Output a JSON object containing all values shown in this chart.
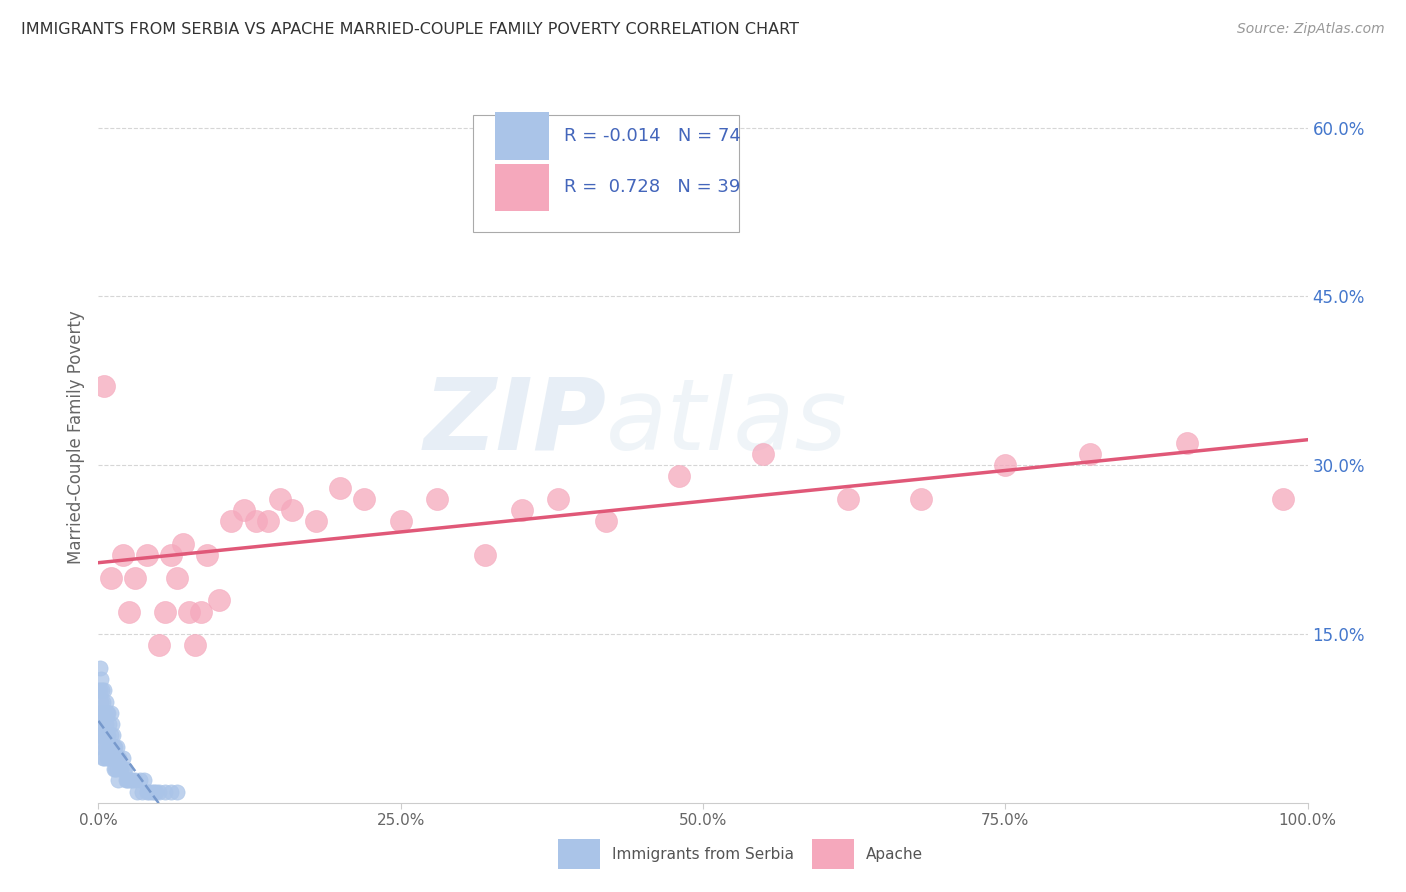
{
  "title": "IMMIGRANTS FROM SERBIA VS APACHE MARRIED-COUPLE FAMILY POVERTY CORRELATION CHART",
  "source": "Source: ZipAtlas.com",
  "ylabel": "Married-Couple Family Poverty",
  "legend_label1": "Immigrants from Serbia",
  "legend_label2": "Apache",
  "r1": "-0.014",
  "n1": "74",
  "r2": "0.728",
  "n2": "39",
  "serbia_color": "#aac4e8",
  "apache_color": "#f5a8bc",
  "serbia_line_color": "#7799cc",
  "apache_line_color": "#e05878",
  "serbia_x": [
    0.0,
    0.0,
    0.0,
    0.001,
    0.001,
    0.001,
    0.001,
    0.002,
    0.002,
    0.002,
    0.002,
    0.003,
    0.003,
    0.003,
    0.003,
    0.004,
    0.004,
    0.004,
    0.004,
    0.005,
    0.005,
    0.005,
    0.005,
    0.006,
    0.006,
    0.006,
    0.007,
    0.007,
    0.007,
    0.008,
    0.008,
    0.008,
    0.009,
    0.009,
    0.01,
    0.01,
    0.01,
    0.011,
    0.011,
    0.012,
    0.012,
    0.013,
    0.013,
    0.014,
    0.014,
    0.015,
    0.015,
    0.016,
    0.016,
    0.017,
    0.018,
    0.019,
    0.02,
    0.021,
    0.022,
    0.023,
    0.024,
    0.025,
    0.027,
    0.028,
    0.03,
    0.032,
    0.034,
    0.036,
    0.038,
    0.04,
    0.042,
    0.044,
    0.046,
    0.048,
    0.05,
    0.055,
    0.06,
    0.065
  ],
  "serbia_y": [
    0.1,
    0.08,
    0.06,
    0.12,
    0.1,
    0.08,
    0.06,
    0.11,
    0.09,
    0.07,
    0.05,
    0.1,
    0.08,
    0.07,
    0.05,
    0.09,
    0.08,
    0.06,
    0.04,
    0.1,
    0.08,
    0.06,
    0.04,
    0.09,
    0.07,
    0.05,
    0.08,
    0.06,
    0.04,
    0.08,
    0.06,
    0.04,
    0.07,
    0.05,
    0.08,
    0.06,
    0.04,
    0.07,
    0.05,
    0.06,
    0.04,
    0.05,
    0.03,
    0.05,
    0.03,
    0.05,
    0.03,
    0.04,
    0.02,
    0.04,
    0.03,
    0.03,
    0.04,
    0.03,
    0.03,
    0.02,
    0.02,
    0.02,
    0.02,
    0.02,
    0.02,
    0.01,
    0.02,
    0.01,
    0.02,
    0.01,
    0.01,
    0.01,
    0.01,
    0.01,
    0.01,
    0.01,
    0.01,
    0.01
  ],
  "apache_x": [
    0.005,
    0.01,
    0.02,
    0.025,
    0.03,
    0.04,
    0.05,
    0.055,
    0.06,
    0.065,
    0.07,
    0.075,
    0.08,
    0.085,
    0.09,
    0.1,
    0.11,
    0.12,
    0.13,
    0.14,
    0.15,
    0.16,
    0.18,
    0.2,
    0.22,
    0.25,
    0.28,
    0.32,
    0.35,
    0.38,
    0.42,
    0.48,
    0.55,
    0.62,
    0.68,
    0.75,
    0.82,
    0.9,
    0.98
  ],
  "apache_y": [
    0.37,
    0.2,
    0.22,
    0.17,
    0.2,
    0.22,
    0.14,
    0.17,
    0.22,
    0.2,
    0.23,
    0.17,
    0.14,
    0.17,
    0.22,
    0.18,
    0.25,
    0.26,
    0.25,
    0.25,
    0.27,
    0.26,
    0.25,
    0.28,
    0.27,
    0.25,
    0.27,
    0.22,
    0.26,
    0.27,
    0.25,
    0.29,
    0.31,
    0.27,
    0.27,
    0.3,
    0.31,
    0.32,
    0.27
  ],
  "xlim": [
    0.0,
    1.0
  ],
  "ylim": [
    0.0,
    0.65
  ],
  "ytick_vals": [
    0.15,
    0.3,
    0.45,
    0.6
  ],
  "ytick_labels": [
    "15.0%",
    "30.0%",
    "45.0%",
    "60.0%"
  ],
  "xtick_vals": [
    0.0,
    0.25,
    0.5,
    0.75,
    1.0
  ],
  "xtick_labels": [
    "0.0%",
    "25.0%",
    "50.0%",
    "75.0%",
    "100.0%"
  ],
  "background_color": "#ffffff",
  "watermark_zip": "ZIP",
  "watermark_atlas": "atlas"
}
